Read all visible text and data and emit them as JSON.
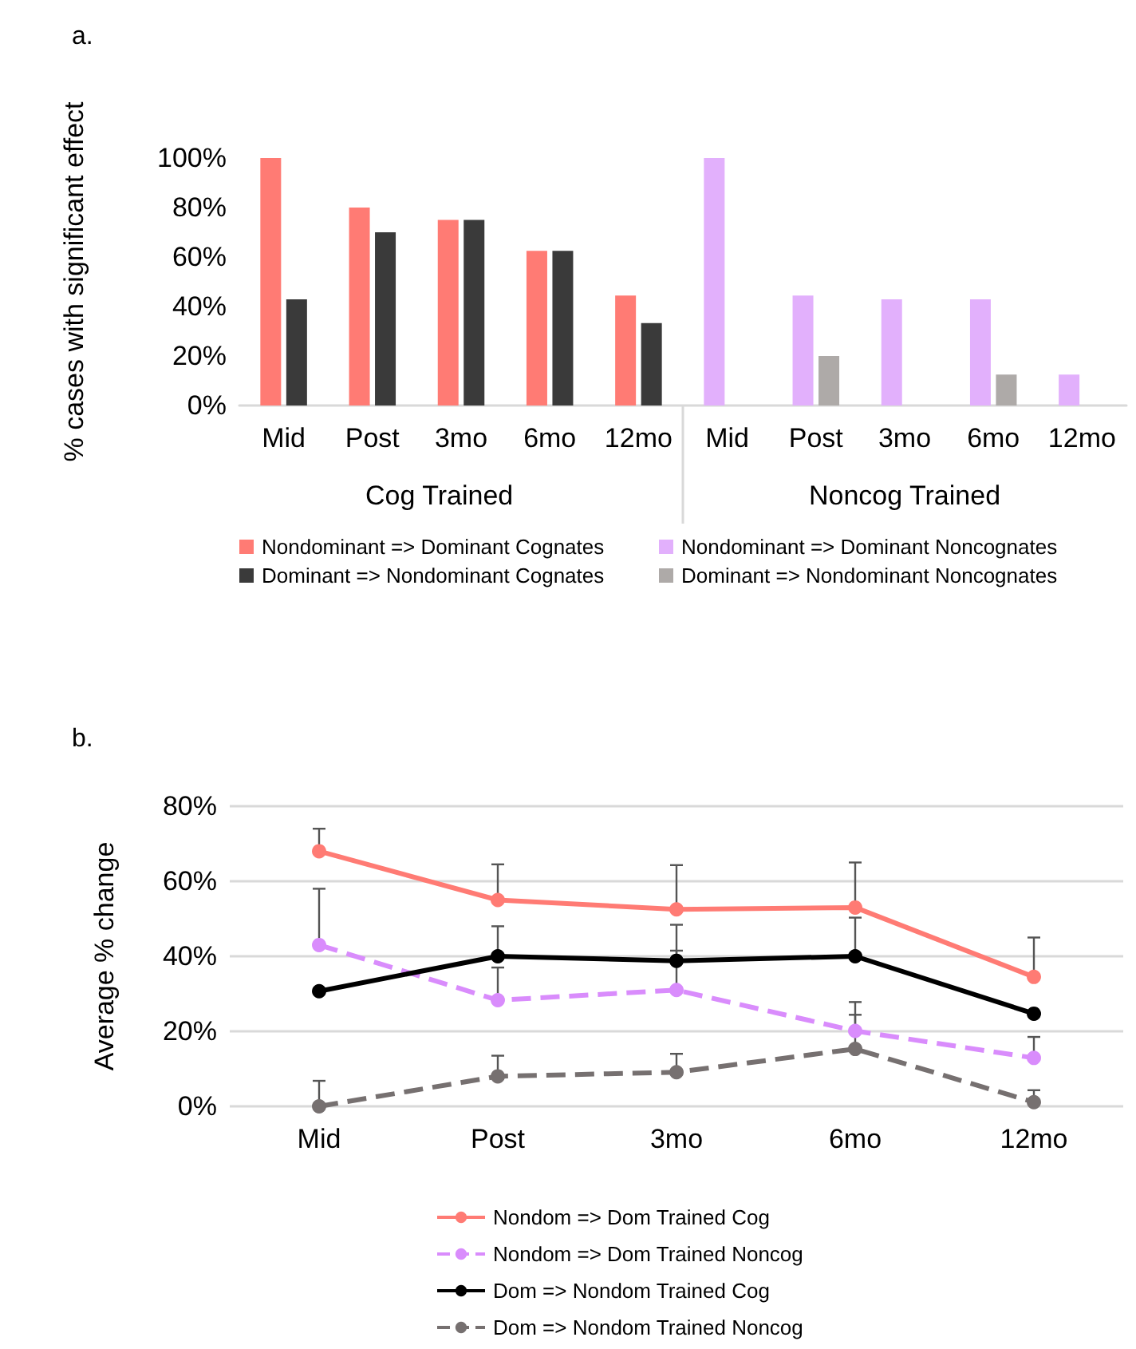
{
  "chart_data": [
    {
      "type": "bar",
      "title": "a.",
      "ylabel": "% cases with significant effect",
      "categories": [
        "Mid",
        "Post",
        "3mo",
        "6mo",
        "12mo",
        "Mid",
        "Post",
        "3mo",
        "6mo",
        "12mo"
      ],
      "annotations": [
        "Cog Trained",
        "Noncog Trained"
      ],
      "series": [
        {
          "name": "Nondominant => Dominant Cognates",
          "color": "#ff7b74",
          "values": [
            100,
            80,
            75,
            62.5,
            44.4,
            null,
            null,
            null,
            null,
            null
          ]
        },
        {
          "name": "Dominant => Nondominant Cognates",
          "color": "#3a3a3a",
          "values": [
            42.9,
            70,
            75,
            62.5,
            33.3,
            null,
            null,
            null,
            null,
            null
          ]
        },
        {
          "name": "Nondominant => Dominant Noncognates",
          "color": "#e2b0fc",
          "values": [
            null,
            null,
            null,
            null,
            null,
            100,
            44.4,
            42.9,
            42.9,
            12.5
          ]
        },
        {
          "name": "Dominant => Nondominant Noncognates",
          "color": "#aeaaa8",
          "values": [
            null,
            null,
            null,
            null,
            null,
            0,
            20,
            0,
            12.5,
            0
          ]
        }
      ],
      "ylim": [
        0,
        100
      ],
      "yticks": [
        {
          "value": 0,
          "label": "0%"
        },
        {
          "value": 20,
          "label": "20%"
        },
        {
          "value": 40,
          "label": "40%"
        },
        {
          "value": 60,
          "label": "60%"
        },
        {
          "value": 80,
          "label": "80%"
        },
        {
          "value": 100,
          "label": "100%"
        }
      ],
      "grid": false,
      "legend": "bottom"
    },
    {
      "type": "line",
      "title": "b.",
      "ylabel": "Average % change",
      "categories": [
        "Mid",
        "Post",
        "3mo",
        "6mo",
        "12mo"
      ],
      "series": [
        {
          "name": "Nondom => Dom Trained Cog",
          "color": "#ff7b74",
          "line_style": "solid",
          "values": [
            68,
            55,
            52.5,
            53,
            34.5
          ],
          "errors": [
            [
              68,
              74
            ],
            [
              55,
              64.5
            ],
            [
              52.5,
              64.3
            ],
            [
              53,
              65
            ],
            [
              34.5,
              45
            ]
          ]
        },
        {
          "name": "Nondom => Dom Trained Noncog",
          "color": "#d98cfc",
          "line_style": "dashed",
          "values": [
            43,
            28.3,
            31,
            20.1,
            12.9
          ],
          "errors": [
            [
              43,
              58
            ],
            [
              28.3,
              37
            ],
            [
              31,
              41.5
            ],
            [
              20.1,
              27.8
            ],
            [
              12.9,
              18.5
            ]
          ]
        },
        {
          "name": "Dom => Nondom Trained Cog",
          "color": "#000000",
          "line_style": "solid",
          "values": [
            30.7,
            40,
            38.8,
            40,
            24.7
          ],
          "errors": [
            null,
            [
              40,
              48
            ],
            [
              38.8,
              48.4
            ],
            [
              40,
              50.3
            ],
            null
          ]
        },
        {
          "name": "Dom => Nondom Trained Noncog",
          "color": "#767070",
          "line_style": "dashed",
          "values": [
            0,
            8,
            9.1,
            15.3,
            1.1
          ],
          "errors": [
            [
              0,
              6.8
            ],
            [
              8,
              13.5
            ],
            [
              9.1,
              14
            ],
            [
              15.3,
              24.4
            ],
            [
              1.1,
              4.3
            ]
          ]
        }
      ],
      "ylim": [
        0,
        80
      ],
      "yticks": [
        {
          "value": 0,
          "label": "0%"
        },
        {
          "value": 20,
          "label": "20%"
        },
        {
          "value": 40,
          "label": "40%"
        },
        {
          "value": 60,
          "label": "60%"
        },
        {
          "value": 80,
          "label": "80%"
        }
      ],
      "grid": "y",
      "legend": "bottom",
      "marker": "circle"
    }
  ]
}
